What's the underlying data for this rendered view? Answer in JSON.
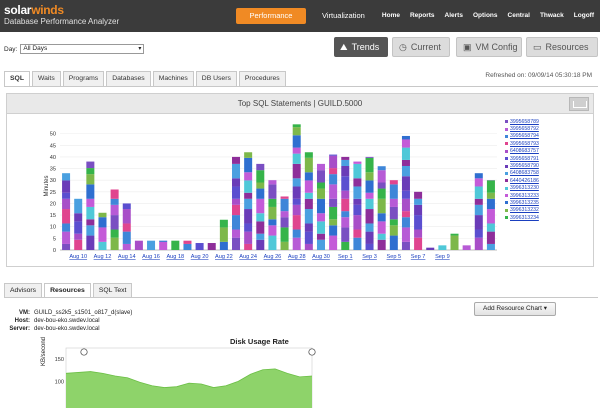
{
  "brand": {
    "name_main": "solar",
    "name_accent": "winds",
    "subtitle": "Database Performance Analyzer"
  },
  "nav": {
    "performance": "Performance",
    "virtualization": "Virtualization",
    "links": [
      "Home",
      "Reports",
      "Alerts",
      "Options",
      "Central",
      "Thwack",
      "Logoff"
    ]
  },
  "filter": {
    "day_label": "Day:",
    "day_value": "All Days",
    "caret": "▾"
  },
  "views": [
    {
      "label": "Trends",
      "icon": "trend-chart-icon",
      "glyph": "⛰",
      "active": true
    },
    {
      "label": "Current",
      "icon": "clock-icon",
      "glyph": "◷",
      "active": false
    },
    {
      "label": "VM Config",
      "icon": "vm-icon",
      "glyph": "▣",
      "active": false
    },
    {
      "label": "Resources",
      "icon": "monitor-icon",
      "glyph": "▭",
      "active": false
    }
  ],
  "tabs": [
    "SQL",
    "Waits",
    "Programs",
    "Databases",
    "Machines",
    "DB Users",
    "Procedures"
  ],
  "refreshed": "Refreshed on: 09/09/14 05:30:18 PM",
  "chart_panel": {
    "title": "Top SQL Statements | GUILD.5000"
  },
  "chart_data": {
    "type": "bar",
    "stacked": true,
    "ylabel": "Minutes",
    "ylim": [
      0,
      55
    ],
    "yticks": [
      0,
      5,
      10,
      15,
      20,
      25,
      30,
      35,
      40,
      45,
      50
    ],
    "xtick_labels": [
      "Aug 10",
      "Aug 12",
      "Aug 14",
      "Aug 16",
      "Aug 18",
      "Aug 20",
      "Aug 22",
      "Aug 24",
      "Aug 26",
      "Aug 28",
      "Aug 30",
      "Sep 1",
      "Sep 3",
      "Sep 5",
      "Sep 7",
      "Sep 9"
    ],
    "totals": [
      33,
      22,
      38,
      16,
      26,
      20,
      4,
      4,
      4,
      4,
      4,
      3,
      3,
      13,
      40,
      42,
      37,
      30,
      23,
      54,
      42,
      37,
      41,
      40,
      38,
      40,
      36,
      30,
      49,
      25,
      1,
      2,
      7,
      2,
      33,
      30
    ],
    "legend": [
      "3995658789",
      "3995658792",
      "3995658794",
      "3995658793",
      "6408683757",
      "3995658791",
      "3995658790",
      "6408683758",
      "6440426186",
      "3996313230",
      "3996313233",
      "3996313235",
      "3996313232",
      "3996313234"
    ],
    "colors": [
      "#7a4fc2",
      "#b75bd6",
      "#3f86d8",
      "#e0458f",
      "#a84ec8",
      "#5b4fd0",
      "#6a3cb8",
      "#4aa0e0",
      "#8e2e9a",
      "#4fc8d8",
      "#c45bd8",
      "#2f6fd0",
      "#7db84a",
      "#36b44a"
    ]
  },
  "lower_tabs": [
    "Advisors",
    "Resources",
    "SQL Text"
  ],
  "details": [
    {
      "key": "VM:",
      "value": "GUILD_ss2k5_s1501_o817_d(slave)"
    },
    {
      "key": "Host:",
      "value": "dev-bou-eko.swdev.local"
    },
    {
      "key": "Server:",
      "value": "dev-bou-eko.swdev.local"
    }
  ],
  "add_chart": "Add Resource Chart ▾",
  "disk_chart": {
    "title": "Disk Usage Rate",
    "ylabel": "KB/second",
    "yticks": [
      "150",
      "100"
    ],
    "values": [
      118,
      120,
      122,
      118,
      112,
      108,
      98,
      90,
      86,
      88,
      96,
      94,
      86,
      90,
      100,
      116,
      126,
      128,
      118,
      110,
      112
    ]
  }
}
